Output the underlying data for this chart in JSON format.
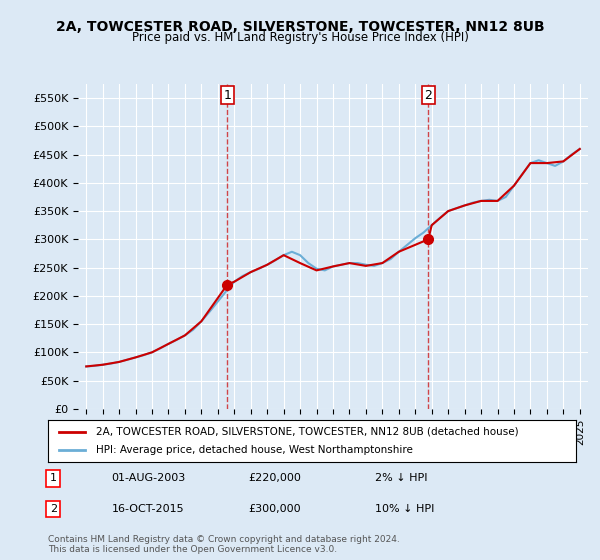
{
  "title": "2A, TOWCESTER ROAD, SILVERSTONE, TOWCESTER, NN12 8UB",
  "subtitle": "Price paid vs. HM Land Registry's House Price Index (HPI)",
  "background_color": "#dce9f5",
  "plot_bg_color": "#dce9f5",
  "legend_label_red": "2A, TOWCESTER ROAD, SILVERSTONE, TOWCESTER, NN12 8UB (detached house)",
  "legend_label_blue": "HPI: Average price, detached house, West Northamptonshire",
  "footer": "Contains HM Land Registry data © Crown copyright and database right 2024.\nThis data is licensed under the Open Government Licence v3.0.",
  "sale1_label": "1",
  "sale1_date": "01-AUG-2003",
  "sale1_price": "£220,000",
  "sale1_hpi": "2% ↓ HPI",
  "sale1_year": 2003.58,
  "sale1_value": 220000,
  "sale2_label": "2",
  "sale2_date": "16-OCT-2015",
  "sale2_price": "£300,000",
  "sale2_hpi": "10% ↓ HPI",
  "sale2_year": 2015.79,
  "sale2_value": 300000,
  "ylim": [
    0,
    570000
  ],
  "yticks": [
    0,
    50000,
    100000,
    150000,
    200000,
    250000,
    300000,
    350000,
    400000,
    450000,
    500000,
    550000
  ],
  "ytick_labels": [
    "£0",
    "£50K",
    "£100K",
    "£150K",
    "£200K",
    "£250K",
    "£300K",
    "£350K",
    "£400K",
    "£450K",
    "£500K",
    "£550K"
  ],
  "hpi_color": "#6baed6",
  "price_color": "#cc0000",
  "vline_color": "#cc0000",
  "marker_color": "#cc0000"
}
